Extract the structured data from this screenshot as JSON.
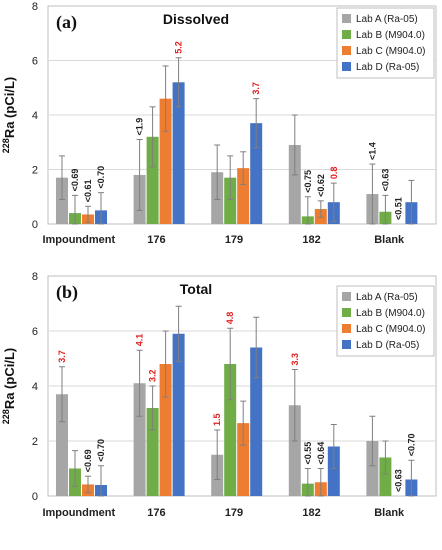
{
  "chart_data": [
    {
      "type": "bar",
      "panel_label": "(a)",
      "title": "Dissolved",
      "ylabel_sup": "228",
      "ylabel_main": "Ra (pCi/L)",
      "ylim": [
        0,
        8
      ],
      "yticks": [
        "0",
        "2",
        "4",
        "6",
        "8"
      ],
      "grid": true,
      "legend_position": "top-right",
      "categories": [
        "Impoundment",
        "176",
        "179",
        "182",
        "Blank"
      ],
      "series": [
        {
          "name": "Lab A (Ra-05)",
          "color": "#a6a6a6",
          "values": [
            1.7,
            1.8,
            1.9,
            2.9,
            1.1
          ],
          "error": [
            0.8,
            1.3,
            1.0,
            1.1,
            1.1
          ]
        },
        {
          "name": "Lab B (M904.0)",
          "color": "#70ad47",
          "values": [
            0.4,
            3.2,
            1.7,
            0.28,
            0.45
          ],
          "error": [
            0.65,
            1.1,
            0.8,
            0.72,
            0.6
          ]
        },
        {
          "name": "Lab C (M904.0)",
          "color": "#ed7d31",
          "values": [
            0.35,
            4.6,
            2.05,
            0.55,
            0.0
          ],
          "error": [
            0.3,
            1.2,
            0.6,
            0.3,
            0.0
          ]
        },
        {
          "name": "Lab D (Ra-05)",
          "color": "#4472c4",
          "values": [
            0.5,
            5.2,
            3.7,
            0.8,
            0.8
          ],
          "error": [
            0.65,
            0.9,
            0.9,
            0.7,
            0.8
          ]
        }
      ],
      "annotations": [
        {
          "category": 0,
          "series": 1,
          "text": "<0.69",
          "color": "#222222"
        },
        {
          "category": 0,
          "series": 2,
          "text": "<0.61",
          "color": "#222222"
        },
        {
          "category": 0,
          "series": 3,
          "text": "<0.70",
          "color": "#222222"
        },
        {
          "category": 1,
          "series": 0,
          "text": "<1.9",
          "color": "#222222"
        },
        {
          "category": 1,
          "series": 3,
          "text": "5.2",
          "color": "#e02020"
        },
        {
          "category": 2,
          "series": 3,
          "text": "3.7",
          "color": "#e02020"
        },
        {
          "category": 3,
          "series": 1,
          "text": "<0.75",
          "color": "#222222"
        },
        {
          "category": 3,
          "series": 2,
          "text": "<0.62",
          "color": "#222222"
        },
        {
          "category": 3,
          "series": 3,
          "text": "0.8",
          "color": "#e02020"
        },
        {
          "category": 4,
          "series": 0,
          "text": "<1.4",
          "color": "#222222"
        },
        {
          "category": 4,
          "series": 1,
          "text": "<0.63",
          "color": "#222222"
        },
        {
          "category": 4,
          "series": 2,
          "text": "<0.51",
          "color": "#222222"
        }
      ]
    },
    {
      "type": "bar",
      "panel_label": "(b)",
      "title": "Total",
      "ylabel_sup": "228",
      "ylabel_main": "Ra (pCi/L)",
      "ylim": [
        0,
        8
      ],
      "yticks": [
        "0",
        "2",
        "4",
        "6",
        "8"
      ],
      "grid": true,
      "legend_position": "top-right",
      "categories": [
        "Impoundment",
        "176",
        "179",
        "182",
        "Blank"
      ],
      "series": [
        {
          "name": "Lab A (Ra-05)",
          "color": "#a6a6a6",
          "values": [
            3.7,
            4.1,
            1.5,
            3.3,
            2.0
          ],
          "error": [
            1.0,
            1.2,
            0.9,
            1.3,
            0.9
          ]
        },
        {
          "name": "Lab B (M904.0)",
          "color": "#70ad47",
          "values": [
            1.0,
            3.2,
            4.8,
            0.45,
            1.4
          ],
          "error": [
            0.65,
            0.8,
            1.3,
            0.55,
            0.6
          ]
        },
        {
          "name": "Lab C (M904.0)",
          "color": "#ed7d31",
          "values": [
            0.42,
            4.8,
            2.65,
            0.5,
            0.0
          ],
          "error": [
            0.3,
            1.2,
            0.8,
            0.5,
            0.0
          ]
        },
        {
          "name": "Lab D (Ra-05)",
          "color": "#4472c4",
          "values": [
            0.4,
            5.9,
            5.4,
            1.8,
            0.6
          ],
          "error": [
            0.7,
            1.0,
            1.1,
            0.8,
            0.7
          ]
        }
      ],
      "annotations": [
        {
          "category": 0,
          "series": 0,
          "text": "3.7",
          "color": "#e02020"
        },
        {
          "category": 0,
          "series": 2,
          "text": "<0.69",
          "color": "#222222"
        },
        {
          "category": 0,
          "series": 3,
          "text": "<0.70",
          "color": "#222222"
        },
        {
          "category": 1,
          "series": 0,
          "text": "4.1",
          "color": "#e02020"
        },
        {
          "category": 1,
          "series": 1,
          "text": "3.2",
          "color": "#e02020"
        },
        {
          "category": 2,
          "series": 0,
          "text": "1.5",
          "color": "#e02020"
        },
        {
          "category": 2,
          "series": 1,
          "text": "4.8",
          "color": "#e02020"
        },
        {
          "category": 3,
          "series": 0,
          "text": "3.3",
          "color": "#e02020"
        },
        {
          "category": 3,
          "series": 1,
          "text": "<0.55",
          "color": "#222222"
        },
        {
          "category": 3,
          "series": 2,
          "text": "<0.64",
          "color": "#222222"
        },
        {
          "category": 4,
          "series": 2,
          "text": "<0.63",
          "color": "#222222"
        },
        {
          "category": 4,
          "series": 3,
          "text": "<0.70",
          "color": "#222222"
        }
      ]
    }
  ]
}
